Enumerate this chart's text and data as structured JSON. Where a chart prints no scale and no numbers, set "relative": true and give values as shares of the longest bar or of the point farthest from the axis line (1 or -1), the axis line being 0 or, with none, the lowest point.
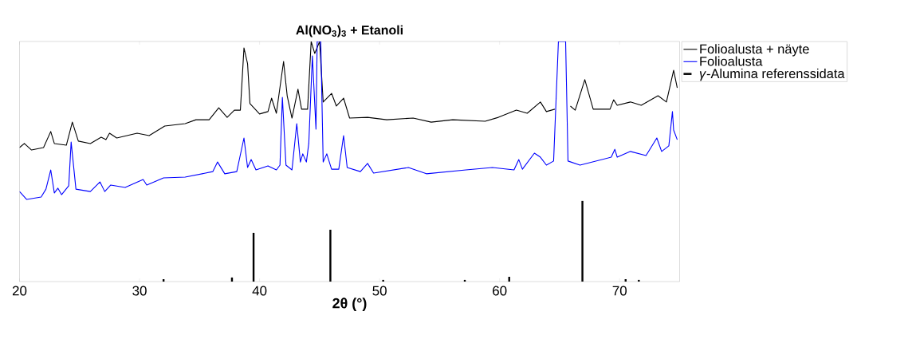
{
  "chart_data": {
    "type": "line",
    "title": "Al(NO$_{3}$)$_{3}$ + Etanoli",
    "xlabel": "2θ (°)",
    "relative": true,
    "xlim": [
      20,
      75
    ],
    "xticks": [
      20,
      30,
      40,
      50,
      60,
      70
    ],
    "grid": false,
    "legend": "right",
    "series": [
      {
        "name": "Folioalusta + näyte",
        "color": "#000000",
        "x": [
          20.0,
          20.4,
          21.0,
          22.0,
          22.6,
          22.9,
          23.9,
          24.4,
          24.9,
          25.9,
          26.8,
          27.2,
          27.5,
          28.1,
          29.8,
          30.8,
          32.1,
          33.8,
          34.7,
          35.8,
          36.6,
          37.3,
          37.9,
          38.4,
          38.7,
          39.0,
          39.2,
          40.0,
          40.7,
          41.0,
          41.4,
          42.0,
          42.3,
          42.7,
          43.2,
          43.5,
          44.0,
          44.3,
          44.6,
          45.0,
          45.3,
          46.0,
          46.4,
          47.0,
          47.5,
          49.0,
          50.6,
          52.8,
          54.3,
          56.1,
          58.8,
          59.9,
          61.4,
          62.3,
          63.4,
          63.9,
          64.6,
          64.9,
          65.5,
          65.9,
          66.3,
          67.1,
          67.8,
          69.2,
          69.5,
          69.8,
          70.9,
          71.8,
          73.2,
          73.9,
          74.5,
          74.8
        ],
        "values": [
          0.558,
          0.575,
          0.548,
          0.558,
          0.625,
          0.575,
          0.568,
          0.664,
          0.585,
          0.575,
          0.601,
          0.591,
          0.618,
          0.598,
          0.618,
          0.608,
          0.648,
          0.658,
          0.674,
          0.674,
          0.724,
          0.684,
          0.714,
          0.714,
          0.973,
          0.907,
          0.741,
          0.698,
          0.708,
          0.764,
          0.701,
          0.917,
          0.774,
          0.681,
          0.801,
          0.718,
          0.718,
          1.0,
          0.95,
          1.0,
          0.748,
          0.784,
          0.731,
          0.764,
          0.681,
          0.684,
          0.674,
          0.681,
          0.664,
          0.674,
          0.668,
          0.684,
          0.714,
          0.701,
          0.748,
          0.708,
          0.718,
          null,
          null,
          0.731,
          0.714,
          0.841,
          0.718,
          0.718,
          0.757,
          0.734,
          0.748,
          0.734,
          0.774,
          0.748,
          0.88,
          0.807
        ]
      },
      {
        "name": "Folioalusta",
        "color": "#0000ff",
        "x": [
          20.0,
          20.6,
          21.8,
          22.2,
          22.6,
          22.9,
          23.2,
          23.5,
          24.1,
          24.3,
          24.7,
          25.9,
          26.7,
          27.1,
          27.6,
          28.8,
          30.3,
          30.6,
          32.0,
          33.8,
          36.1,
          36.5,
          37.1,
          38.1,
          38.7,
          39.0,
          39.3,
          39.7,
          40.7,
          41.4,
          41.7,
          41.9,
          42.2,
          42.7,
          43.1,
          43.4,
          43.6,
          43.9,
          44.1,
          44.4,
          44.7,
          44.8,
          45.1,
          45.3,
          45.6,
          46.0,
          46.6,
          47.0,
          47.3,
          48.4,
          49.0,
          49.5,
          52.4,
          53.9,
          57.2,
          59.4,
          61.2,
          61.6,
          61.9,
          62.9,
          63.4,
          63.9,
          64.5,
          64.9,
          65.5,
          65.7,
          66.7,
          69.3,
          69.6,
          69.8,
          70.9,
          72.2,
          73.1,
          73.5,
          74.1,
          74.4,
          74.5,
          74.8
        ],
        "values": [
          0.375,
          0.342,
          0.352,
          0.385,
          0.465,
          0.369,
          0.389,
          0.362,
          0.399,
          0.581,
          0.385,
          0.375,
          0.415,
          0.375,
          0.402,
          0.392,
          0.425,
          0.402,
          0.432,
          0.435,
          0.458,
          0.498,
          0.449,
          0.458,
          0.598,
          0.475,
          0.508,
          0.465,
          0.482,
          0.465,
          0.485,
          0.767,
          0.485,
          0.465,
          0.658,
          0.498,
          0.532,
          0.498,
          0.575,
          0.94,
          0.635,
          1.0,
          1.0,
          0.498,
          0.532,
          0.468,
          0.468,
          0.608,
          0.475,
          0.458,
          0.492,
          0.452,
          0.475,
          0.449,
          0.465,
          0.475,
          0.465,
          0.508,
          0.468,
          0.535,
          0.518,
          0.485,
          0.502,
          1.0,
          1.0,
          0.502,
          0.485,
          0.518,
          0.551,
          0.518,
          0.542,
          0.525,
          0.598,
          0.542,
          0.565,
          0.708,
          0.631,
          0.591
        ]
      },
      {
        "name": "*γ*-Alumina referenssidata",
        "type": "bar",
        "color": "#000000",
        "x": [
          32.0,
          37.7,
          39.5,
          45.9,
          50.3,
          57.1,
          60.8,
          66.9,
          70.5,
          71.6
        ],
        "values": [
          0.01,
          0.017,
          0.203,
          0.216,
          0.007,
          0.007,
          0.02,
          0.336,
          0.01,
          0.007
        ]
      }
    ]
  }
}
